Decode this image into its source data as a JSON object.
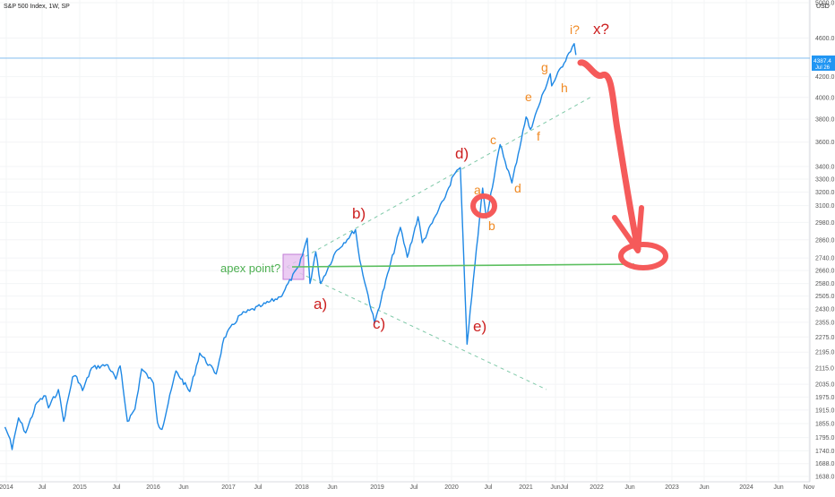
{
  "header": {
    "symbol_label": "S&P 500 Index, 1W, SP",
    "currency_label": "USD"
  },
  "price_tag": {
    "value": "4387.4",
    "date": "Jul 26",
    "bg_color": "#2196f3"
  },
  "colors": {
    "line": "#1e88e5",
    "apex_line": "#4caf50",
    "dashed": "#7fc9a8",
    "forecast": "#f55a5a",
    "wave_red": "#cc1f1f",
    "wave_orange": "#f08a24",
    "apex_box": "#d89ce8"
  },
  "chart_data": {
    "type": "line",
    "title": "S&P 500 Index, 1W, SP",
    "xlabel": "",
    "ylabel": "",
    "ylim": [
      1638,
      5000
    ],
    "y_scale": "log",
    "x_tick_labels": [
      "2014",
      "Jul",
      "2015",
      "Jul",
      "2016",
      "Jun",
      "2017",
      "Jul",
      "2018",
      "Jun",
      "2019",
      "Jul",
      "2020",
      "Jul",
      "2021",
      "Jun",
      "Jul",
      "2022",
      "Jun",
      "2023",
      "Jun",
      "2024",
      "Jun",
      "Nov"
    ],
    "y_tick_labels": [
      "5000.0",
      "4600.0",
      "4200.0",
      "4000.0",
      "3800.0",
      "3600.0",
      "3400.0",
      "3300.0",
      "3200.0",
      "3100.0",
      "2980.0",
      "2860.0",
      "2740.0",
      "2660.0",
      "2580.0",
      "2505.0",
      "2430.0",
      "2355.0",
      "2275.0",
      "2195.0",
      "2115.0",
      "2035.0",
      "1975.0",
      "1915.0",
      "1855.0",
      "1795.0",
      "1740.0",
      "1688.0",
      "1638.0"
    ],
    "series": [
      {
        "values": [
          [
            "2013-12-30",
            1840
          ],
          [
            "2014-01-24",
            1790
          ],
          [
            "2014-02-03",
            1745
          ],
          [
            "2014-03-07",
            1880
          ],
          [
            "2014-04-11",
            1815
          ],
          [
            "2014-06-06",
            1950
          ],
          [
            "2014-07-18",
            1980
          ],
          [
            "2014-08-01",
            1925
          ],
          [
            "2014-09-19",
            2010
          ],
          [
            "2014-10-15",
            1865
          ],
          [
            "2014-11-28",
            2070
          ],
          [
            "2014-12-19",
            2070
          ],
          [
            "2015-01-16",
            2005
          ],
          [
            "2015-03-02",
            2115
          ],
          [
            "2015-05-20",
            2130
          ],
          [
            "2015-06-29",
            2060
          ],
          [
            "2015-07-20",
            2125
          ],
          [
            "2015-08-25",
            1865
          ],
          [
            "2015-10-01",
            1920
          ],
          [
            "2015-11-03",
            2110
          ],
          [
            "2015-12-31",
            2040
          ],
          [
            "2016-01-20",
            1860
          ],
          [
            "2016-02-11",
            1830
          ],
          [
            "2016-04-20",
            2100
          ],
          [
            "2016-06-27",
            2000
          ],
          [
            "2016-08-15",
            2190
          ],
          [
            "2016-11-04",
            2085
          ],
          [
            "2016-12-13",
            2270
          ],
          [
            "2017-03-01",
            2395
          ],
          [
            "2017-06-19",
            2450
          ],
          [
            "2017-09-15",
            2500
          ],
          [
            "2017-12-18",
            2690
          ],
          [
            "2018-01-26",
            2870
          ],
          [
            "2018-02-09",
            2580
          ],
          [
            "2018-03-09",
            2780
          ],
          [
            "2018-04-02",
            2580
          ],
          [
            "2018-06-15",
            2780
          ],
          [
            "2018-09-21",
            2930
          ],
          [
            "2018-10-12",
            2725
          ],
          [
            "2018-12-24",
            2350
          ],
          [
            "2019-04-30",
            2945
          ],
          [
            "2019-06-03",
            2745
          ],
          [
            "2019-07-26",
            3020
          ],
          [
            "2019-08-16",
            2840
          ],
          [
            "2019-11-29",
            3140
          ],
          [
            "2020-01-17",
            3330
          ],
          [
            "2020-02-19",
            3390
          ],
          [
            "2020-03-23",
            2237
          ],
          [
            "2020-06-08",
            3230
          ],
          [
            "2020-06-26",
            3010
          ],
          [
            "2020-09-02",
            3580
          ],
          [
            "2020-10-30",
            3270
          ],
          [
            "2021-01-08",
            3820
          ],
          [
            "2021-01-29",
            3710
          ],
          [
            "2021-05-07",
            4230
          ],
          [
            "2021-05-14",
            4110
          ],
          [
            "2021-08-06",
            4440
          ],
          [
            "2021-09-02",
            4540
          ],
          [
            "2021-09-10",
            4420
          ]
        ]
      }
    ],
    "annotations": {
      "wave_labels_red": [
        "a)",
        "b)",
        "c)",
        "d)",
        "e)",
        "x?"
      ],
      "wave_labels_orange": [
        "a",
        "b",
        "c",
        "d",
        "e",
        "f",
        "g",
        "h",
        "i?"
      ],
      "apex_label": "apex point?"
    }
  }
}
